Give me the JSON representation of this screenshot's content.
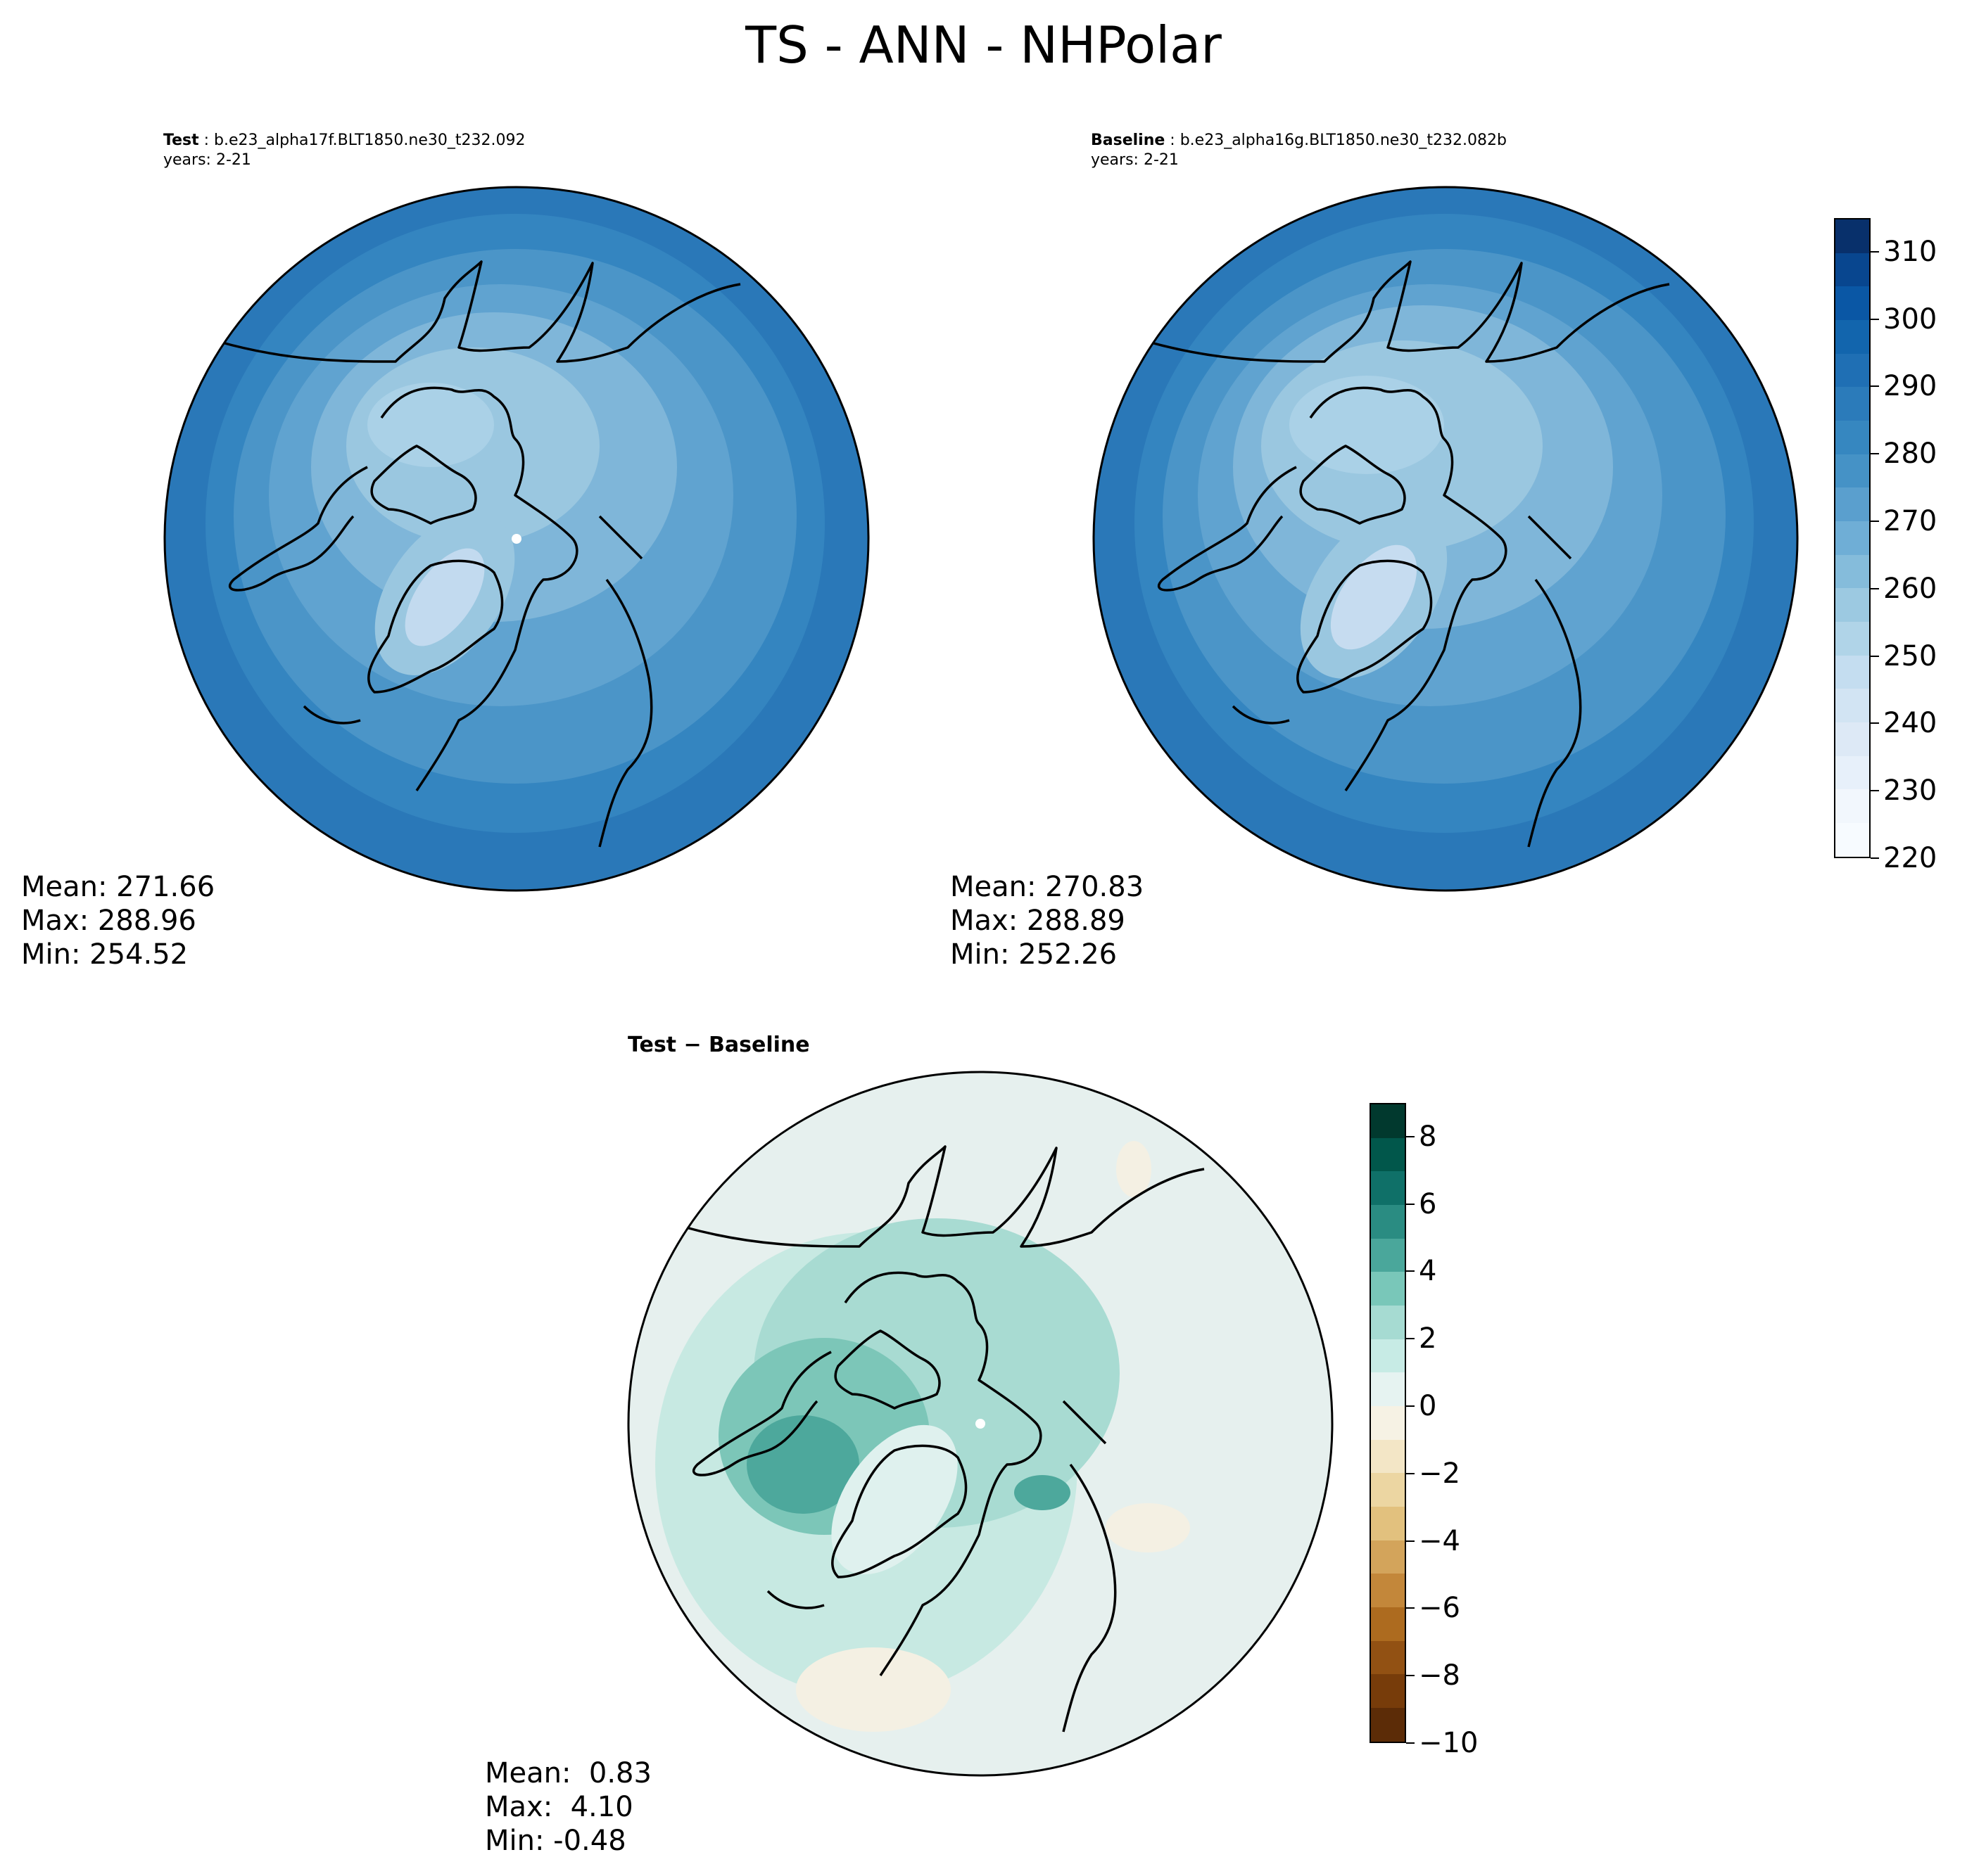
{
  "title": "TS - ANN - NHPolar",
  "test": {
    "label": "Test",
    "case": "b.e23_alpha17f.BLT1850.ne30_t232.092",
    "years": "years: 2-21",
    "stats": {
      "mean": "Mean: 271.66",
      "max": "Max: 288.96",
      "min": "Min: 254.52"
    }
  },
  "baseline": {
    "label": "Baseline",
    "case": "b.e23_alpha16g.BLT1850.ne30_t232.082b",
    "years": "years: 2-21",
    "stats": {
      "mean": "Mean: 270.83",
      "max": "Max: 288.89",
      "min": "Min: 252.26"
    }
  },
  "difference": {
    "label": "Test − Baseline",
    "stats": {
      "mean": "Mean:  0.83",
      "max": "Max:  4.10",
      "min": "Min: -0.48"
    }
  },
  "colorbar_main": {
    "ticks": [
      "310",
      "300",
      "290",
      "280",
      "270",
      "260",
      "250",
      "240",
      "230",
      "220"
    ],
    "range": [
      220,
      315
    ],
    "colors": [
      "#08306b",
      "#08468f",
      "#0a57a5",
      "#1265ad",
      "#1f6fb4",
      "#2b7bba",
      "#3687c0",
      "#4592c6",
      "#5a9fce",
      "#6faed6",
      "#85bcdb",
      "#9cc9e1",
      "#b0d4e8",
      "#c4ddf0",
      "#d2e4f3",
      "#dde9f6",
      "#e7f0fa",
      "#f2f7fd",
      "#f7fbff"
    ]
  },
  "colorbar_diff": {
    "ticks": [
      "8",
      "6",
      "4",
      "2",
      "0",
      "−2",
      "−4",
      "−6",
      "−8",
      "−10"
    ],
    "range": [
      -10,
      9
    ],
    "colors": [
      "#01392e",
      "#01574b",
      "#0f7068",
      "#2a8c82",
      "#4aa79b",
      "#79c7b9",
      "#a6dbd2",
      "#c7ebe5",
      "#e6f3f1",
      "#f6f2e4",
      "#f3e6c6",
      "#ecd6a2",
      "#e2c17e",
      "#d3a45b",
      "#c3873a",
      "#ad6b1f",
      "#925113",
      "#773c0a",
      "#5c2c07"
    ]
  }
}
